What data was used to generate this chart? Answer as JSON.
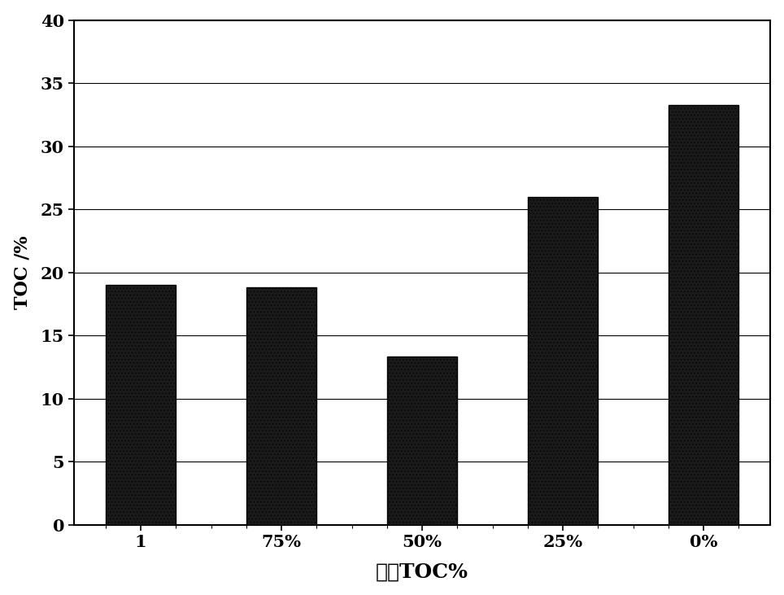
{
  "categories": [
    "1",
    "75%",
    "50%",
    "25%",
    "0%"
  ],
  "values": [
    19.0,
    18.8,
    13.3,
    26.0,
    33.3
  ],
  "bar_facecolor": "#1a1a1a",
  "bar_hatch": "....",
  "bar_hatch_color": "#cccccc",
  "title": "",
  "xlabel": "乙酸TOC%",
  "ylabel": "TOC /%",
  "ylim": [
    0,
    40
  ],
  "yticks": [
    0,
    5,
    10,
    15,
    20,
    25,
    30,
    35,
    40
  ],
  "xlabel_fontsize": 18,
  "ylabel_fontsize": 16,
  "tick_fontsize": 15,
  "background_color": "#ffffff",
  "bar_width": 0.5,
  "figure_width": 9.64,
  "figure_height": 7.31
}
